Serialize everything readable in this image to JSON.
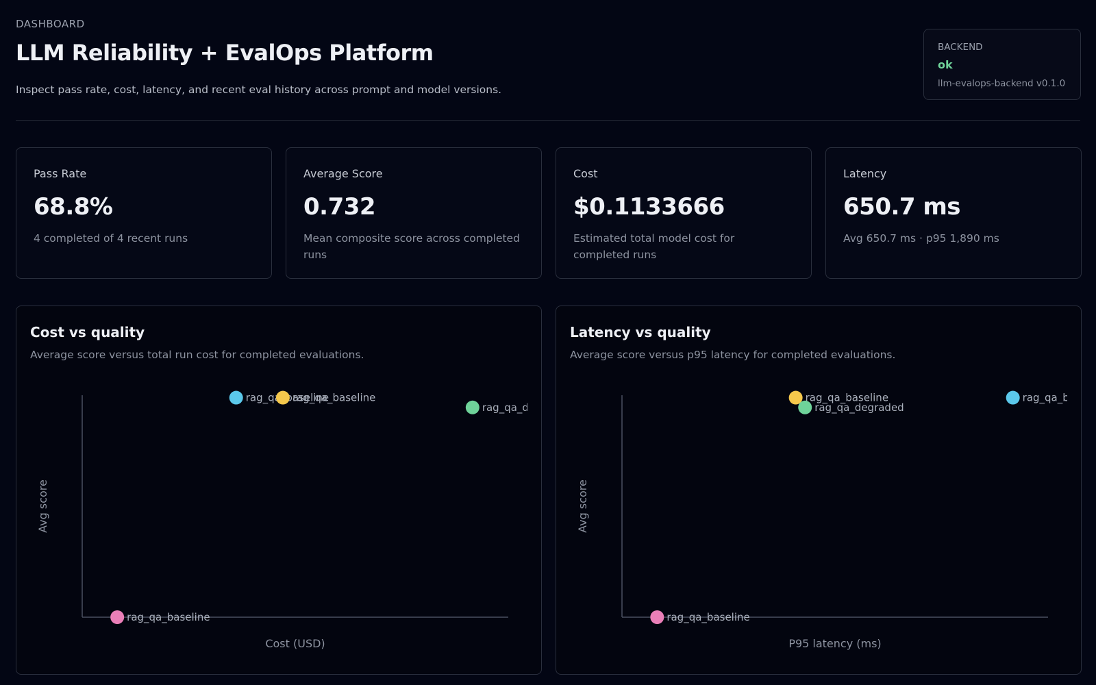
{
  "header": {
    "eyebrow": "DASHBOARD",
    "title": "LLM Reliability + EvalOps Platform",
    "subtitle": "Inspect pass rate, cost, latency, and recent eval history across prompt and model versions."
  },
  "backend": {
    "label": "BACKEND",
    "status": "ok",
    "version": "llm-evalops-backend v0.1.0"
  },
  "cards": [
    {
      "label": "Pass Rate",
      "value": "68.8%",
      "note": "4 completed of 4 recent runs"
    },
    {
      "label": "Average Score",
      "value": "0.732",
      "note": "Mean composite score across completed runs"
    },
    {
      "label": "Cost",
      "value": "$0.1133666",
      "note": "Estimated total model cost for completed runs"
    },
    {
      "label": "Latency",
      "value": "650.7 ms",
      "note": "Avg 650.7 ms · p95 1,890 ms"
    }
  ],
  "chart_data": [
    {
      "type": "scatter",
      "title": "Cost vs quality",
      "subtitle": "Average score versus total run cost for completed evaluations.",
      "xlabel": "Cost (USD)",
      "ylabel": "Avg score",
      "xlim": [
        0,
        0.062
      ],
      "ylim": [
        0.4,
        0.855
      ],
      "x": [
        0.0224,
        0.0292,
        0.0568,
        0.0051
      ],
      "values": [
        0.85,
        0.85,
        0.83,
        0.4
      ],
      "labels": [
        "rag_qa_baseline",
        "rag_qa_baseline",
        "rag_qa_degraded",
        "rag_qa_baseline"
      ],
      "colors": [
        "#5bc8ea",
        "#f5c84c",
        "#6fd39a",
        "#ea7fb8"
      ]
    },
    {
      "type": "scatter",
      "title": "Latency vs quality",
      "subtitle": "Average score versus p95 latency for completed evaluations.",
      "xlabel": "P95 latency (ms)",
      "ylabel": "Avg score",
      "xlim": [
        0,
        2060
      ],
      "ylim": [
        0.4,
        0.855
      ],
      "x": [
        840,
        885,
        1890,
        170
      ],
      "values": [
        0.85,
        0.83,
        0.85,
        0.4
      ],
      "labels": [
        "rag_qa_baseline",
        "rag_qa_degraded",
        "rag_qa_baseline",
        "rag_qa_baseline"
      ],
      "colors": [
        "#f5c84c",
        "#6fd39a",
        "#5bc8ea",
        "#ea7fb8"
      ]
    }
  ]
}
